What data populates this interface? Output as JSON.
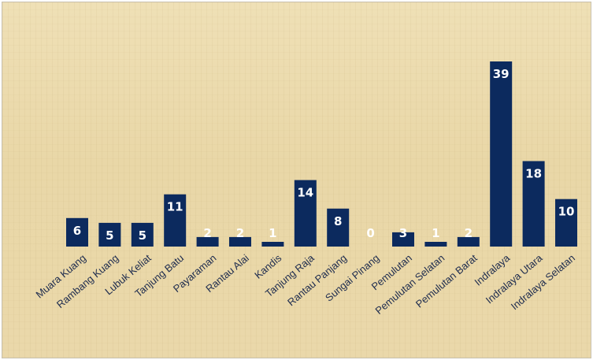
{
  "chart_data": {
    "type": "bar",
    "categories": [
      "Muara Kuang",
      "Rambang Kuang",
      "Lubuk Keliat",
      "Tanjung Batu",
      "Payaraman",
      "Rantau Alai",
      "Kandis",
      "Tanjung Raja",
      "Rantau Panjang",
      "Sungai Pinang",
      "Pemulutan",
      "Pemulutan Selatan",
      "Pemulutan Barat",
      "Indralaya",
      "Indralaya Utara",
      "Indralaya Selatan"
    ],
    "values": [
      6,
      5,
      5,
      11,
      2,
      2,
      1,
      14,
      8,
      0,
      3,
      1,
      2,
      39,
      18,
      10
    ],
    "ylim": [
      0,
      39
    ],
    "bar_color": "#0c2a5e",
    "label_color": "#ffffff",
    "grid": false,
    "legend": "none"
  }
}
